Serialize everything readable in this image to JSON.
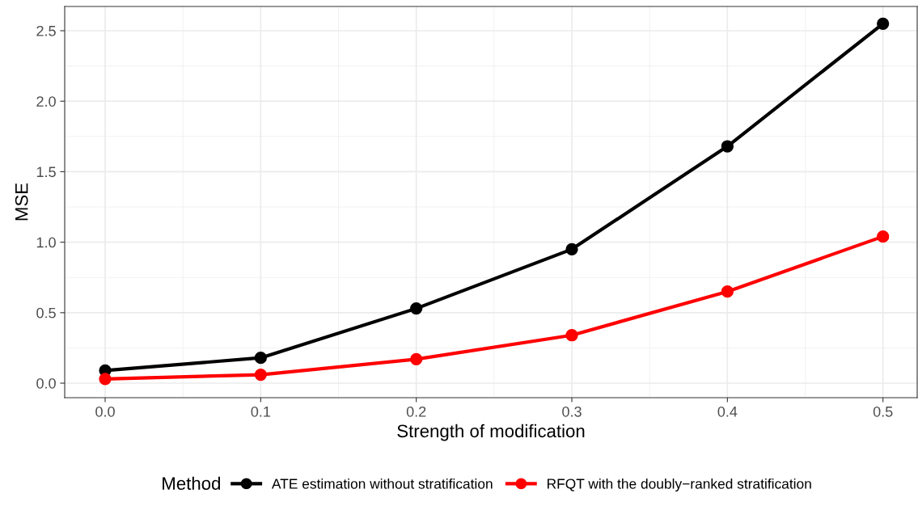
{
  "chart_data": {
    "type": "line",
    "xlabel": "Strength of modification",
    "ylabel": "MSE",
    "legend_title": "Method",
    "x": [
      0.0,
      0.1,
      0.2,
      0.3,
      0.4,
      0.5
    ],
    "series": [
      {
        "name": "ATE estimation without stratification",
        "color": "#000000",
        "values": [
          0.09,
          0.18,
          0.53,
          0.95,
          1.68,
          2.55
        ]
      },
      {
        "name": "RFQT with the doubly−ranked stratification",
        "color": "#ff0000",
        "values": [
          0.03,
          0.06,
          0.17,
          0.34,
          0.65,
          1.04
        ]
      }
    ],
    "xlim": [
      -0.026,
      0.522
    ],
    "ylim": [
      -0.103,
      2.672
    ],
    "xticks": [
      {
        "value": 0.0,
        "label": "0.0"
      },
      0.1,
      0.2,
      0.3,
      0.4,
      0.5
    ],
    "yticks": [
      {
        "value": 0.0,
        "label": "0.0"
      },
      0.5,
      {
        "value": 1.0,
        "label": "1.0"
      },
      1.5,
      {
        "value": 2.0,
        "label": "2.0"
      },
      2.5
    ],
    "grid": true,
    "legend": "bottom",
    "marker": "circle",
    "line_style": "solid"
  }
}
